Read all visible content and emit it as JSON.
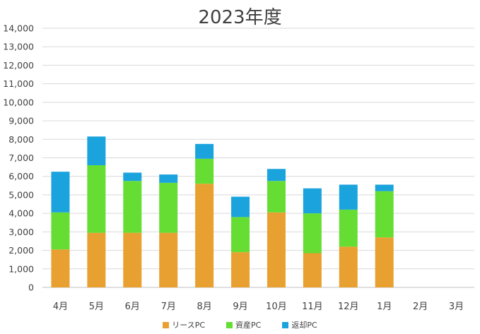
{
  "chart_data": {
    "type": "bar",
    "stacked": true,
    "title": "2023年度",
    "categories": [
      "4月",
      "5月",
      "6月",
      "7月",
      "8月",
      "9月",
      "10月",
      "11月",
      "12月",
      "1月",
      "2月",
      "3月"
    ],
    "series": [
      {
        "name": "リースPC",
        "color": "#E8A030",
        "values": [
          2050,
          2950,
          2950,
          2950,
          5600,
          1900,
          4050,
          1850,
          2200,
          2700,
          0,
          0
        ]
      },
      {
        "name": "資産PC",
        "color": "#66DD33",
        "values": [
          2000,
          3650,
          2800,
          2700,
          1350,
          1900,
          1700,
          2150,
          2000,
          2500,
          0,
          0
        ]
      },
      {
        "name": "返却PC",
        "color": "#1AA3DD",
        "values": [
          2200,
          1550,
          450,
          450,
          800,
          1100,
          650,
          1350,
          1350,
          350,
          0,
          0
        ]
      }
    ],
    "yticks": [
      "0",
      "1,000",
      "2,000",
      "3,000",
      "4,000",
      "5,000",
      "6,000",
      "7,000",
      "8,000",
      "9,000",
      "10,000",
      "11,000",
      "12,000",
      "13,000",
      "14,000"
    ],
    "ylim": [
      0,
      14000
    ],
    "grid": true,
    "legend_position": "bottom"
  }
}
